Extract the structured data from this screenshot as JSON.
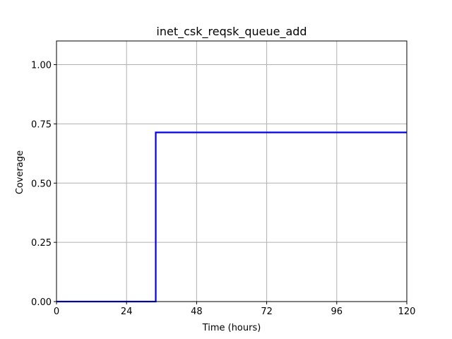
{
  "chart_data": {
    "type": "line",
    "title": "inet_csk_reqsk_queue_add",
    "xlabel": "Time (hours)",
    "ylabel": "Coverage",
    "xlim": [
      0,
      120
    ],
    "ylim": [
      0,
      1.1
    ],
    "xticks": [
      0,
      24,
      48,
      72,
      96,
      120
    ],
    "xtick_labels": [
      "0",
      "24",
      "48",
      "72",
      "96",
      "120"
    ],
    "yticks": [
      0,
      0.25,
      0.5,
      0.75,
      1.0
    ],
    "ytick_labels": [
      "0.00",
      "0.25",
      "0.50",
      "0.75",
      "1.00"
    ],
    "grid": true,
    "series": [
      {
        "color": "#0000ee",
        "step": true,
        "x": [
          0,
          34,
          34,
          120
        ],
        "y": [
          0,
          0,
          0.714,
          0.714
        ]
      }
    ]
  }
}
